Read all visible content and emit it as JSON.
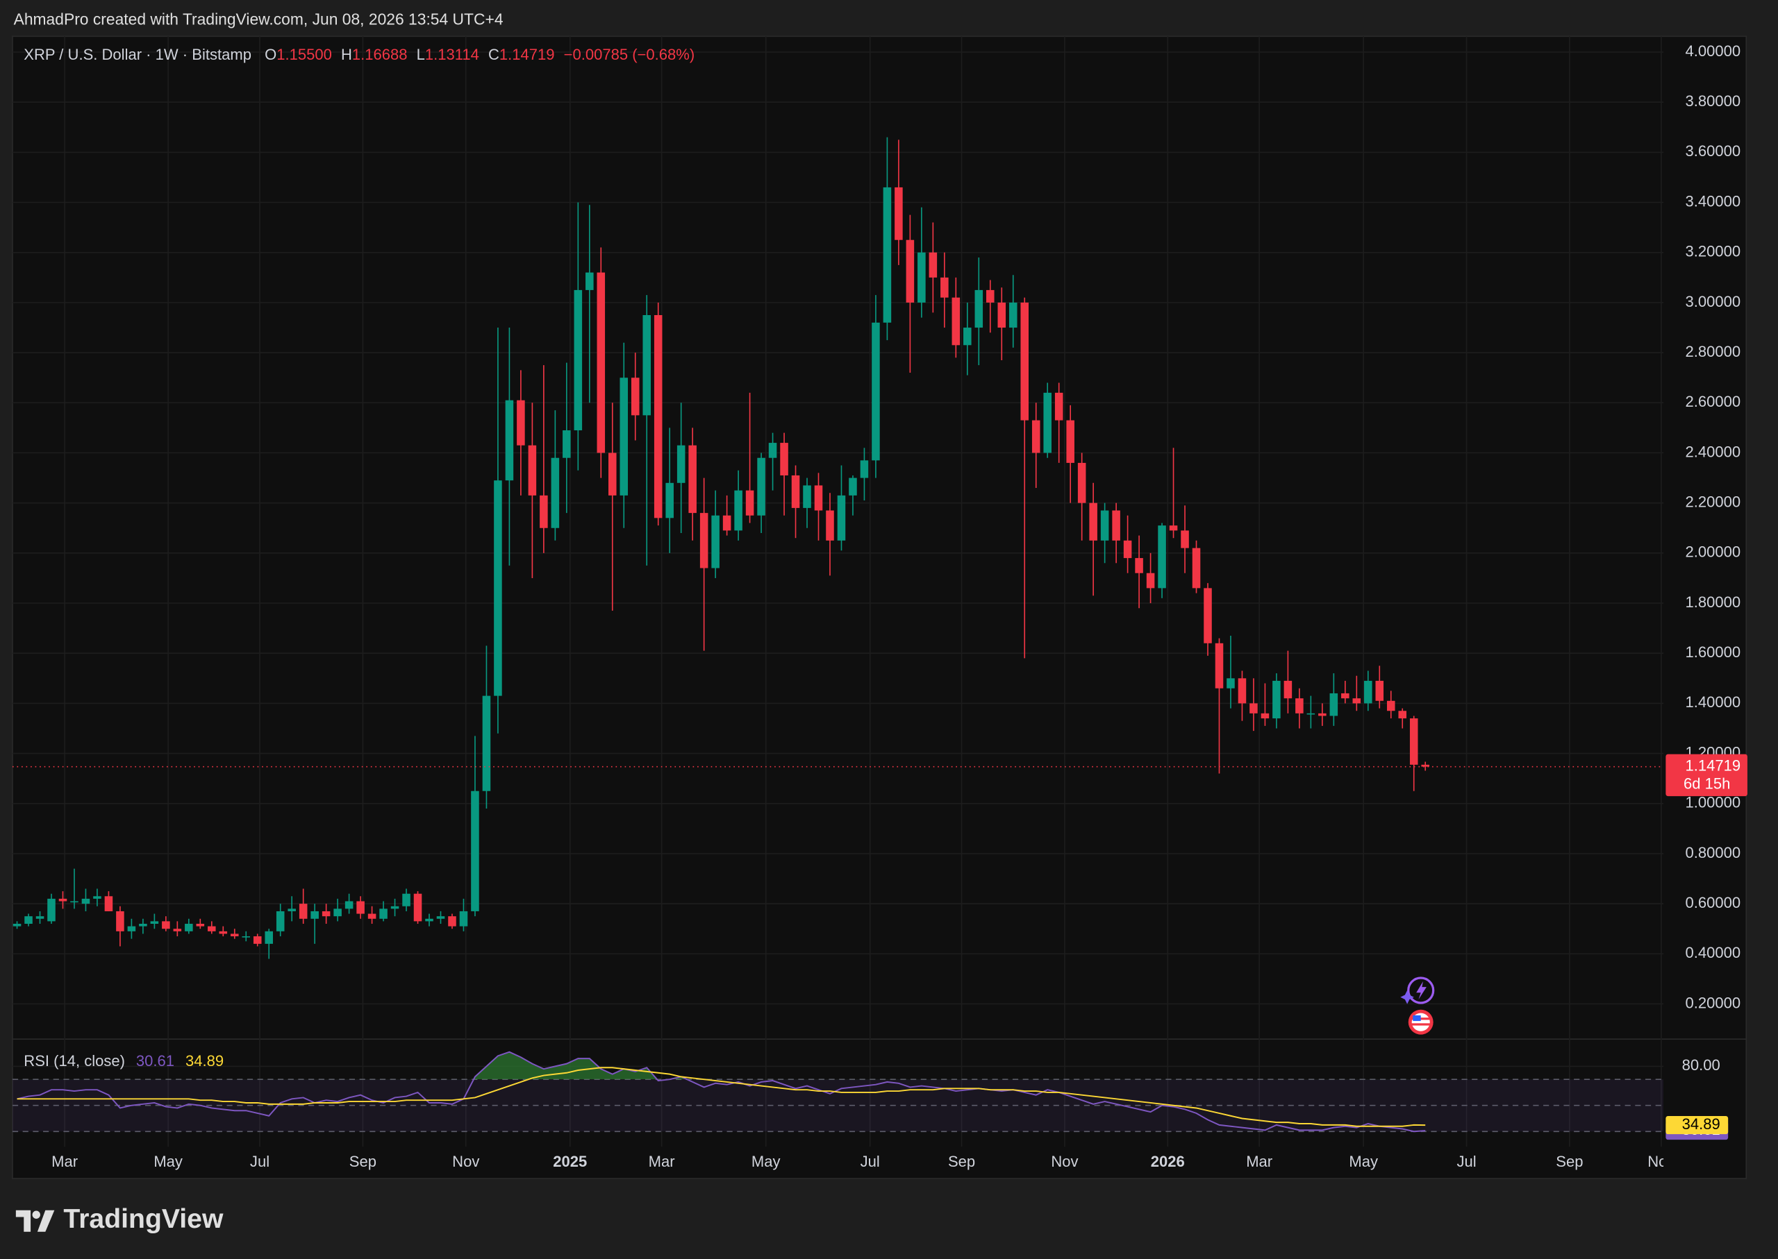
{
  "header": "AhmadPro created with TradingView.com, Jun 08, 2026 13:54 UTC+4",
  "footer_brand": "TradingView",
  "chart_data": {
    "type": "candlestick",
    "title": "XRP / U.S. Dollar · 1W · Bitstamp",
    "ohlc_legend": [
      {
        "label": "O",
        "value": "1.15500"
      },
      {
        "label": "H",
        "value": "1.16688"
      },
      {
        "label": "L",
        "value": "1.13114"
      },
      {
        "label": "C",
        "value": "1.14719"
      }
    ],
    "change": "−0.00785 (−0.68%)",
    "up_color": "#089981",
    "down_color": "#f23645",
    "open": [
      0.51,
      0.52,
      0.54,
      0.53,
      0.62,
      0.61,
      0.6,
      0.62,
      0.63,
      0.57,
      0.49,
      0.51,
      0.52,
      0.53,
      0.5,
      0.49,
      0.52,
      0.51,
      0.49,
      0.48,
      0.47,
      0.47,
      0.44,
      0.49,
      0.57,
      0.6,
      0.54,
      0.57,
      0.55,
      0.58,
      0.61,
      0.56,
      0.54,
      0.58,
      0.59,
      0.64,
      0.53,
      0.54,
      0.55,
      0.51,
      0.57,
      1.05,
      1.43,
      2.29,
      2.61,
      2.43,
      2.23,
      2.1,
      2.38,
      2.49,
      3.05,
      3.12,
      2.4,
      2.23,
      2.7,
      2.55,
      2.95,
      2.14,
      2.28,
      2.43,
      2.16,
      1.94,
      2.15,
      2.09,
      2.25,
      2.15,
      2.38,
      2.44,
      2.31,
      2.18,
      2.27,
      2.17,
      2.05,
      2.23,
      2.3,
      2.37,
      2.92,
      3.46,
      3.25,
      3.0,
      3.2,
      3.1,
      3.02,
      2.83,
      2.9,
      3.05,
      3.0,
      2.9,
      3.0,
      2.53,
      2.4,
      2.64,
      2.53,
      2.36,
      2.2,
      2.05,
      2.17,
      2.05,
      1.98,
      1.92,
      1.86,
      2.11,
      2.09,
      2.02,
      1.86,
      1.64,
      1.46,
      1.5,
      1.4,
      1.36,
      1.34,
      1.49,
      1.42,
      1.36,
      1.36,
      1.35,
      1.44,
      1.42,
      1.4,
      1.49,
      1.41,
      1.37,
      1.34,
      1.155
    ],
    "high": [
      0.53,
      0.56,
      0.57,
      0.64,
      0.65,
      0.74,
      0.66,
      0.66,
      0.65,
      0.59,
      0.54,
      0.54,
      0.56,
      0.55,
      0.53,
      0.54,
      0.54,
      0.53,
      0.51,
      0.5,
      0.49,
      0.48,
      0.5,
      0.6,
      0.63,
      0.66,
      0.6,
      0.6,
      0.62,
      0.64,
      0.63,
      0.59,
      0.61,
      0.62,
      0.66,
      0.65,
      0.56,
      0.57,
      0.56,
      0.62,
      1.27,
      1.63,
      2.9,
      2.9,
      2.73,
      2.6,
      2.75,
      2.57,
      2.76,
      3.4,
      3.39,
      3.22,
      2.6,
      2.84,
      2.8,
      3.03,
      3.0,
      2.5,
      2.6,
      2.5,
      2.3,
      2.25,
      2.23,
      2.33,
      2.64,
      2.4,
      2.48,
      2.48,
      2.35,
      2.3,
      2.32,
      2.24,
      2.35,
      2.31,
      2.42,
      3.03,
      3.66,
      3.65,
      3.35,
      3.38,
      3.32,
      3.2,
      3.1,
      3.0,
      3.18,
      3.09,
      3.06,
      3.11,
      3.02,
      2.6,
      2.68,
      2.68,
      2.59,
      2.4,
      2.28,
      2.2,
      2.2,
      2.15,
      2.07,
      2.0,
      2.12,
      2.42,
      2.19,
      2.05,
      1.88,
      1.66,
      1.67,
      1.53,
      1.5,
      1.48,
      1.52,
      1.61,
      1.46,
      1.43,
      1.4,
      1.52,
      1.49,
      1.51,
      1.53,
      1.55,
      1.45,
      1.38,
      1.35,
      1.16688
    ],
    "low": [
      0.5,
      0.51,
      0.52,
      0.52,
      0.58,
      0.58,
      0.57,
      0.59,
      0.57,
      0.43,
      0.46,
      0.48,
      0.5,
      0.49,
      0.47,
      0.48,
      0.5,
      0.48,
      0.47,
      0.46,
      0.45,
      0.43,
      0.38,
      0.47,
      0.53,
      0.52,
      0.44,
      0.52,
      0.53,
      0.56,
      0.54,
      0.52,
      0.53,
      0.55,
      0.57,
      0.52,
      0.51,
      0.52,
      0.5,
      0.49,
      0.55,
      0.98,
      1.28,
      1.95,
      2.23,
      1.9,
      2.0,
      2.05,
      2.16,
      2.33,
      2.6,
      2.3,
      1.77,
      2.1,
      2.45,
      1.95,
      2.11,
      2.0,
      2.08,
      2.05,
      1.61,
      1.9,
      2.07,
      2.05,
      2.12,
      2.08,
      2.25,
      2.15,
      2.06,
      2.1,
      2.05,
      1.91,
      2.01,
      2.15,
      2.21,
      2.3,
      2.85,
      3.15,
      2.72,
      2.94,
      2.96,
      2.9,
      2.78,
      2.71,
      2.75,
      2.88,
      2.77,
      2.82,
      1.58,
      2.26,
      2.38,
      2.36,
      2.2,
      2.05,
      1.83,
      1.96,
      1.96,
      1.92,
      1.78,
      1.8,
      1.82,
      2.06,
      1.92,
      1.84,
      1.59,
      1.12,
      1.38,
      1.33,
      1.29,
      1.31,
      1.3,
      1.36,
      1.3,
      1.3,
      1.31,
      1.31,
      1.4,
      1.37,
      1.37,
      1.38,
      1.34,
      1.3,
      1.05,
      1.13114
    ],
    "close": [
      0.52,
      0.55,
      0.55,
      0.62,
      0.61,
      0.61,
      0.62,
      0.63,
      0.57,
      0.49,
      0.51,
      0.52,
      0.53,
      0.5,
      0.49,
      0.52,
      0.51,
      0.49,
      0.48,
      0.47,
      0.47,
      0.44,
      0.49,
      0.57,
      0.58,
      0.54,
      0.57,
      0.55,
      0.58,
      0.61,
      0.56,
      0.54,
      0.58,
      0.59,
      0.64,
      0.53,
      0.54,
      0.55,
      0.51,
      0.57,
      1.05,
      1.43,
      2.29,
      2.61,
      2.43,
      2.23,
      2.1,
      2.38,
      2.49,
      3.05,
      3.12,
      2.4,
      2.23,
      2.7,
      2.55,
      2.95,
      2.14,
      2.28,
      2.43,
      2.16,
      1.94,
      2.15,
      2.09,
      2.25,
      2.15,
      2.38,
      2.44,
      2.31,
      2.18,
      2.27,
      2.17,
      2.05,
      2.23,
      2.3,
      2.37,
      2.92,
      3.46,
      3.25,
      3.0,
      3.2,
      3.1,
      3.02,
      2.83,
      2.9,
      3.05,
      3.0,
      2.9,
      3.0,
      2.53,
      2.4,
      2.64,
      2.53,
      2.36,
      2.2,
      2.05,
      2.17,
      2.05,
      1.98,
      1.92,
      1.86,
      2.11,
      2.09,
      2.02,
      1.86,
      1.64,
      1.46,
      1.5,
      1.4,
      1.36,
      1.34,
      1.49,
      1.42,
      1.36,
      1.36,
      1.35,
      1.44,
      1.42,
      1.4,
      1.49,
      1.41,
      1.37,
      1.34,
      1.155,
      1.14719
    ],
    "xlim": [
      -0.4,
      143.8
    ],
    "xticks": [
      {
        "value": 4.16,
        "label": "Mar"
      },
      {
        "value": 13.2,
        "label": "May"
      },
      {
        "value": 21.2,
        "label": "Jul"
      },
      {
        "value": 30.2,
        "label": "Sep"
      },
      {
        "value": 39.2,
        "label": "Nov"
      },
      {
        "value": 48.3,
        "label": "2025"
      },
      {
        "value": 56.3,
        "label": "Mar"
      },
      {
        "value": 65.4,
        "label": "May"
      },
      {
        "value": 74.5,
        "label": "Jul"
      },
      {
        "value": 82.5,
        "label": "Sep"
      },
      {
        "value": 91.5,
        "label": "Nov"
      },
      {
        "value": 100.5,
        "label": "2026"
      },
      {
        "value": 108.5,
        "label": "Mar"
      },
      {
        "value": 117.6,
        "label": "May"
      },
      {
        "value": 126.6,
        "label": "Jul"
      },
      {
        "value": 135.6,
        "label": "Sep"
      },
      {
        "value": 143.6,
        "label": "Nov"
      }
    ],
    "ylim": [
      0.064,
      4.063
    ],
    "yticks": [
      {
        "value": 0.2,
        "label": "0.20000"
      },
      {
        "value": 0.4,
        "label": "0.40000"
      },
      {
        "value": 0.6,
        "label": "0.60000"
      },
      {
        "value": 0.8,
        "label": "0.80000"
      },
      {
        "value": 1.0,
        "label": "1.00000"
      },
      {
        "value": 1.2,
        "label": "1.20000"
      },
      {
        "value": 1.4,
        "label": "1.40000"
      },
      {
        "value": 1.6,
        "label": "1.60000"
      },
      {
        "value": 1.8,
        "label": "1.80000"
      },
      {
        "value": 2.0,
        "label": "2.00000"
      },
      {
        "value": 2.2,
        "label": "2.20000"
      },
      {
        "value": 2.4,
        "label": "2.40000"
      },
      {
        "value": 2.6,
        "label": "2.60000"
      },
      {
        "value": 2.8,
        "label": "2.80000"
      },
      {
        "value": 3.0,
        "label": "3.00000"
      },
      {
        "value": 3.2,
        "label": "3.20000"
      },
      {
        "value": 3.4,
        "label": "3.40000"
      },
      {
        "value": 3.6,
        "label": "3.60000"
      },
      {
        "value": 3.8,
        "label": "3.80000"
      },
      {
        "value": 4.0,
        "label": "4.00000"
      }
    ],
    "grid": true,
    "last_price": {
      "value": 1.14719,
      "label": "1.14719"
    },
    "countdown": "6d 15h",
    "indicator": {
      "type": "line",
      "title": "RSI (14, close)",
      "ylim": [
        20,
        100
      ],
      "yticks": [
        {
          "value": 80,
          "label": "80.00"
        }
      ],
      "levels": [
        70,
        50,
        30
      ],
      "overbought_color": "#2e7d32",
      "series": [
        {
          "color": "#7e57c2",
          "last_label": "30.61",
          "values": [
            55,
            57,
            58,
            62,
            62,
            61,
            62,
            62,
            58,
            48,
            50,
            51,
            52,
            49,
            48,
            51,
            50,
            48,
            47,
            46,
            46,
            44,
            42,
            52,
            55,
            56,
            52,
            54,
            53,
            56,
            58,
            54,
            52,
            56,
            57,
            60,
            52,
            52,
            51,
            55,
            72,
            80,
            88,
            91,
            87,
            82,
            78,
            80,
            82,
            86,
            86,
            78,
            74,
            78,
            76,
            79,
            69,
            70,
            72,
            68,
            64,
            67,
            66,
            68,
            65,
            68,
            69,
            66,
            63,
            65,
            62,
            59,
            63,
            64,
            65,
            66,
            68,
            67,
            64,
            65,
            64,
            63,
            61,
            62,
            63,
            62,
            61,
            62,
            60,
            58,
            62,
            60,
            57,
            54,
            51,
            53,
            51,
            49,
            47,
            45,
            50,
            49,
            47,
            44,
            39,
            35,
            34,
            33,
            32,
            31,
            35,
            33,
            31,
            31,
            31,
            33,
            34,
            33,
            36,
            34,
            33,
            32,
            30,
            30.61
          ]
        },
        {
          "color": "#fdd835",
          "last_label": "34.89",
          "values": [
            55,
            55,
            55,
            55,
            55,
            55,
            55,
            55,
            55,
            55,
            55,
            55,
            55,
            55,
            55,
            55,
            54,
            54,
            53,
            53,
            52,
            52,
            51,
            51,
            51,
            51,
            52,
            52,
            52,
            53,
            53,
            53,
            53,
            53,
            54,
            54,
            54,
            54,
            54,
            55,
            56,
            59,
            62,
            65,
            68,
            71,
            73,
            74,
            75,
            77,
            78,
            79,
            79,
            78,
            77,
            76,
            75,
            74,
            72,
            71,
            70,
            69,
            68,
            67,
            66,
            65,
            64,
            63,
            62,
            62,
            61,
            61,
            60,
            60,
            60,
            60,
            61,
            61,
            62,
            62,
            62,
            63,
            63,
            63,
            63,
            62,
            62,
            62,
            61,
            61,
            60,
            60,
            59,
            58,
            57,
            56,
            55,
            54,
            53,
            52,
            51,
            50,
            49,
            48,
            46,
            44,
            42,
            40,
            39,
            38,
            37,
            37,
            36,
            36,
            35,
            35,
            35,
            34,
            34,
            34,
            34,
            34,
            35,
            34.89
          ]
        }
      ]
    }
  }
}
